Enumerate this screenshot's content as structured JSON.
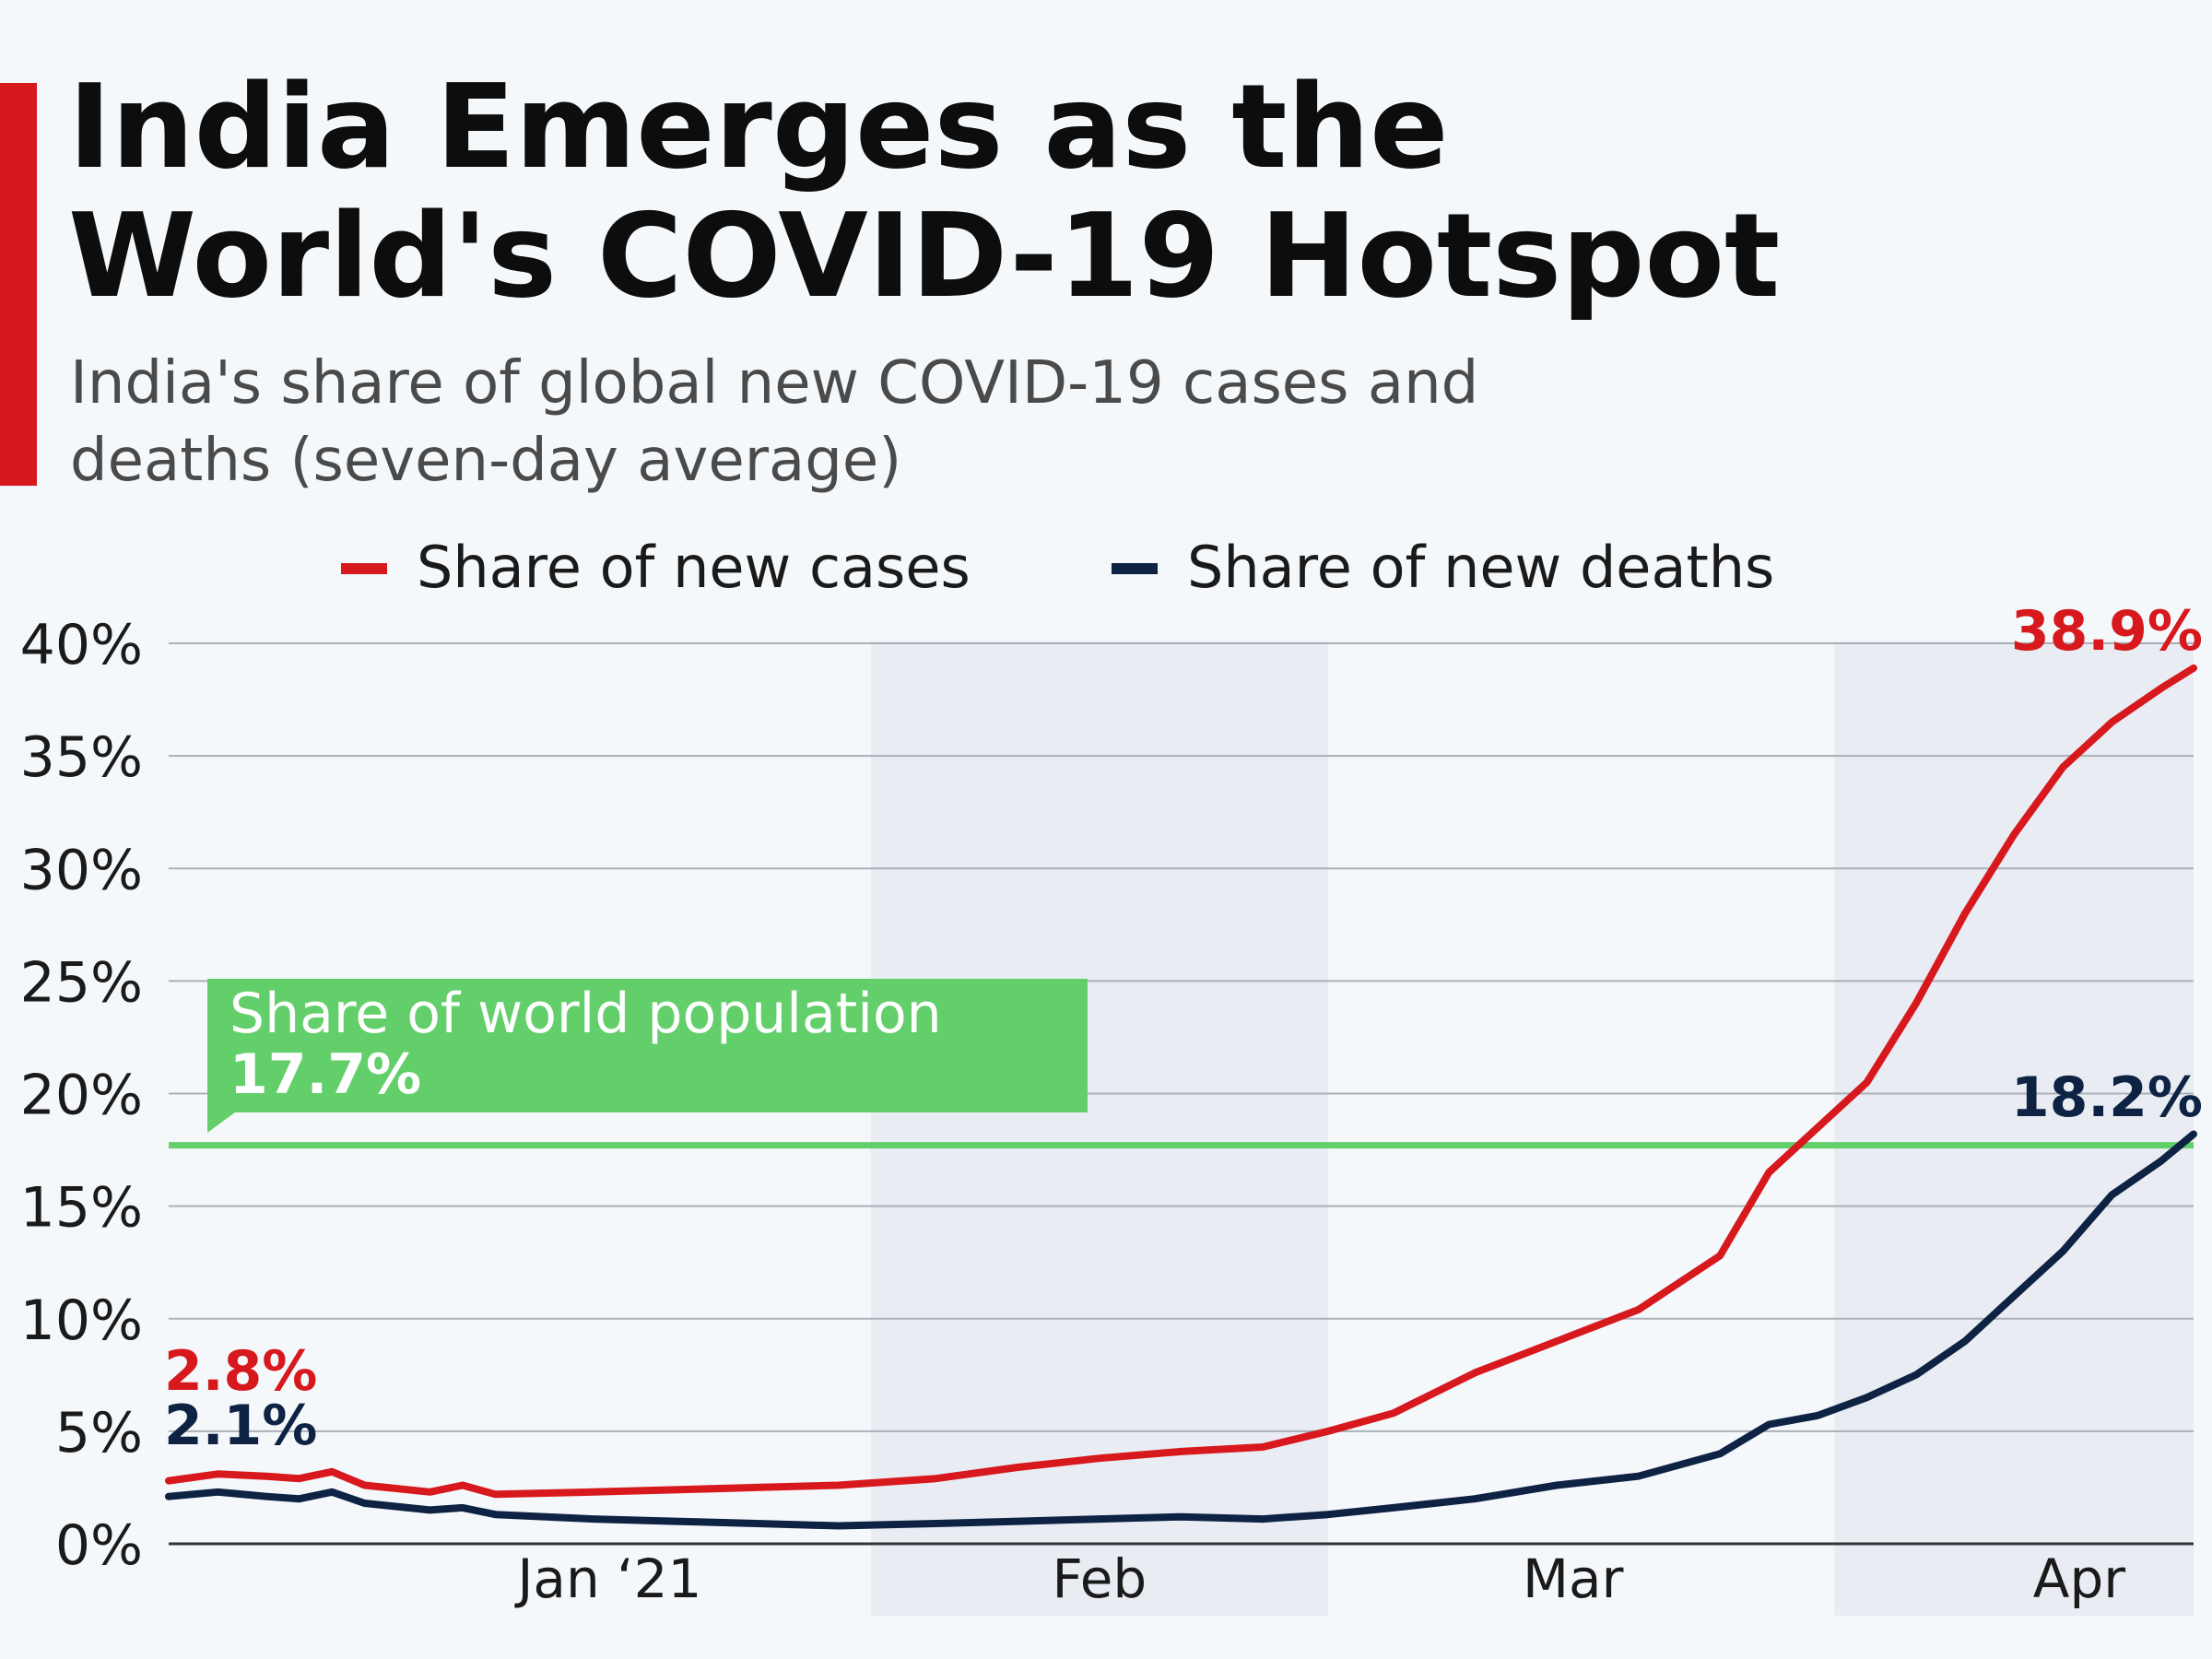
{
  "title": "India Emerges as the\nWorld's COVID-19 Hotspot",
  "subtitle": "India's share of global new COVID-19 cases and\ndeaths (seven-day average)",
  "colors": {
    "accent": "#d7191e",
    "cases": "#d7191e",
    "deaths": "#0e2244",
    "population": "#63cf6b",
    "grid": "#a9b0b7",
    "band": "#e9edf3"
  },
  "chart_data": {
    "type": "line",
    "ylim": [
      0,
      40
    ],
    "y_ticks": [
      "0%",
      "5%",
      "10%",
      "15%",
      "20%",
      "25%",
      "30%",
      "35%",
      "40%"
    ],
    "x_ticks": [
      "Jan ‘21",
      "Feb",
      "Mar",
      "Apr"
    ],
    "legend_position": "top",
    "x_start": "2020-12-20",
    "x_end": "2021-04-23",
    "month_starts": [
      "2021-01-01",
      "2021-02-01",
      "2021-03-01",
      "2021-04-01"
    ],
    "series": [
      {
        "name": "Share of new cases",
        "color": "#d7191e",
        "x": [
          "2020-12-20",
          "2020-12-23",
          "2020-12-26",
          "2020-12-28",
          "2020-12-30",
          "2021-01-01",
          "2021-01-05",
          "2021-01-07",
          "2021-01-09",
          "2021-01-15",
          "2021-01-20",
          "2021-01-25",
          "2021-01-30",
          "2021-02-05",
          "2021-02-10",
          "2021-02-15",
          "2021-02-20",
          "2021-02-25",
          "2021-03-01",
          "2021-03-05",
          "2021-03-10",
          "2021-03-15",
          "2021-03-20",
          "2021-03-25",
          "2021-03-28",
          "2021-03-31",
          "2021-04-03",
          "2021-04-06",
          "2021-04-09",
          "2021-04-12",
          "2021-04-15",
          "2021-04-18",
          "2021-04-21",
          "2021-04-23"
        ],
        "values": [
          2.8,
          3.1,
          3.0,
          2.9,
          3.2,
          2.6,
          2.3,
          2.6,
          2.2,
          2.3,
          2.4,
          2.5,
          2.6,
          2.9,
          3.4,
          3.8,
          4.1,
          4.3,
          5.0,
          5.8,
          7.6,
          9.0,
          10.4,
          12.8,
          16.5,
          18.5,
          20.5,
          24.0,
          28.0,
          31.5,
          34.5,
          36.5,
          38.0,
          38.9
        ]
      },
      {
        "name": "Share of new deaths",
        "color": "#0e2244",
        "x": [
          "2020-12-20",
          "2020-12-23",
          "2020-12-26",
          "2020-12-28",
          "2020-12-30",
          "2021-01-01",
          "2021-01-05",
          "2021-01-07",
          "2021-01-09",
          "2021-01-15",
          "2021-01-20",
          "2021-01-25",
          "2021-01-30",
          "2021-02-05",
          "2021-02-10",
          "2021-02-15",
          "2021-02-20",
          "2021-02-25",
          "2021-03-01",
          "2021-03-05",
          "2021-03-10",
          "2021-03-15",
          "2021-03-20",
          "2021-03-25",
          "2021-03-28",
          "2021-03-31",
          "2021-04-03",
          "2021-04-06",
          "2021-04-09",
          "2021-04-12",
          "2021-04-15",
          "2021-04-18",
          "2021-04-21",
          "2021-04-23"
        ],
        "values": [
          2.1,
          2.3,
          2.1,
          2.0,
          2.3,
          1.8,
          1.5,
          1.6,
          1.3,
          1.1,
          1.0,
          0.9,
          0.8,
          0.9,
          1.0,
          1.1,
          1.2,
          1.1,
          1.3,
          1.6,
          2.0,
          2.6,
          3.0,
          4.0,
          5.3,
          5.7,
          6.5,
          7.5,
          9.0,
          11.0,
          13.0,
          15.5,
          17.0,
          18.2
        ]
      }
    ],
    "reference_line": {
      "value": 17.7,
      "label": "Share of world population",
      "value_label": "17.7%"
    },
    "annotations": {
      "cases_start": "2.8%",
      "deaths_start": "2.1%",
      "cases_end": "38.9%",
      "deaths_end": "18.2%"
    }
  }
}
